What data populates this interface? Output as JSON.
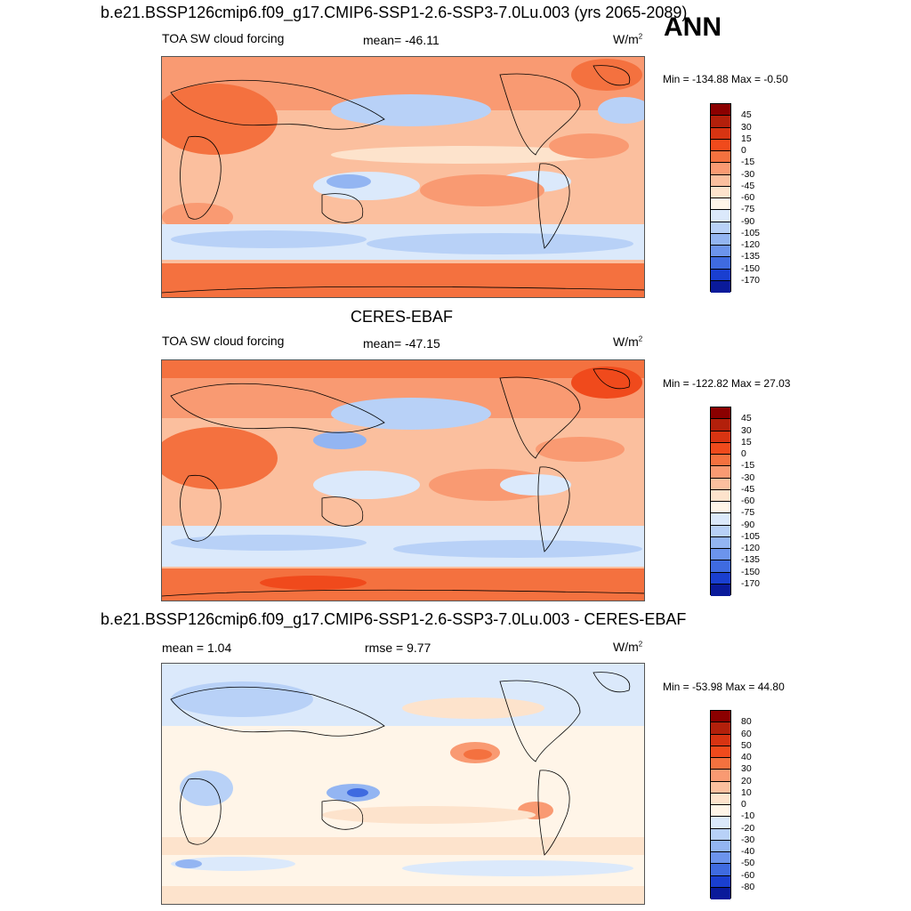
{
  "page": {
    "title1": "b.e21.BSSP126cmip6.f09_g17.CMIP6-SSP1-2.6-SSP3-7.0Lu.003 (yrs 2065-2089)",
    "season": "ANN",
    "title2": "CERES-EBAF",
    "title3": "b.e21.BSSP126cmip6.f09_g17.CMIP6-SSP1-2.6-SSP3-7.0Lu.003 - CERES-EBAF"
  },
  "panels": [
    {
      "left_label": "TOA SW cloud forcing",
      "center_label": "mean= -46.11",
      "units": "W/m",
      "units_sup": "2",
      "minmax": "Min = -134.88 Max =  -0.50",
      "colorbar": {
        "labels": [
          "45",
          "30",
          "15",
          "0",
          "-15",
          "-30",
          "-45",
          "-60",
          "-75",
          "-90",
          "-105",
          "-120",
          "-135",
          "-150",
          "-170"
        ],
        "colors": [
          "#8b0000",
          "#b3200b",
          "#d83412",
          "#f04a1c",
          "#f4713f",
          "#f99a72",
          "#fbbf9e",
          "#fde3cc",
          "#fff5e8",
          "#dbe9fb",
          "#b8d1f7",
          "#93b5f2",
          "#6c94ec",
          "#3f6be0",
          "#1a3fd0",
          "#0a1a9a"
        ]
      }
    },
    {
      "left_label": "TOA SW cloud forcing",
      "center_label": "mean= -47.15",
      "units": "W/m",
      "units_sup": "2",
      "minmax": "Min = -122.82 Max =  27.03",
      "colorbar": {
        "labels": [
          "45",
          "30",
          "15",
          "0",
          "-15",
          "-30",
          "-45",
          "-60",
          "-75",
          "-90",
          "-105",
          "-120",
          "-135",
          "-150",
          "-170"
        ],
        "colors": [
          "#8b0000",
          "#b3200b",
          "#d83412",
          "#f04a1c",
          "#f4713f",
          "#f99a72",
          "#fbbf9e",
          "#fde3cc",
          "#fff5e8",
          "#dbe9fb",
          "#b8d1f7",
          "#93b5f2",
          "#6c94ec",
          "#3f6be0",
          "#1a3fd0",
          "#0a1a9a"
        ]
      }
    },
    {
      "left_label": "mean =   1.04",
      "center_label": "rmse =   9.77",
      "units": "W/m",
      "units_sup": "2",
      "minmax": "Min = -53.98 Max =  44.80",
      "colorbar": {
        "labels": [
          "80",
          "60",
          "50",
          "40",
          "30",
          "20",
          "10",
          "0",
          "-10",
          "-20",
          "-30",
          "-40",
          "-50",
          "-60",
          "-80"
        ],
        "colors": [
          "#8b0000",
          "#b3200b",
          "#d83412",
          "#f04a1c",
          "#f4713f",
          "#f99a72",
          "#fbbf9e",
          "#fde3cc",
          "#fff5e8",
          "#dbe9fb",
          "#b8d1f7",
          "#93b5f2",
          "#6c94ec",
          "#3f6be0",
          "#1a3fd0",
          "#0a1a9a"
        ]
      }
    }
  ]
}
